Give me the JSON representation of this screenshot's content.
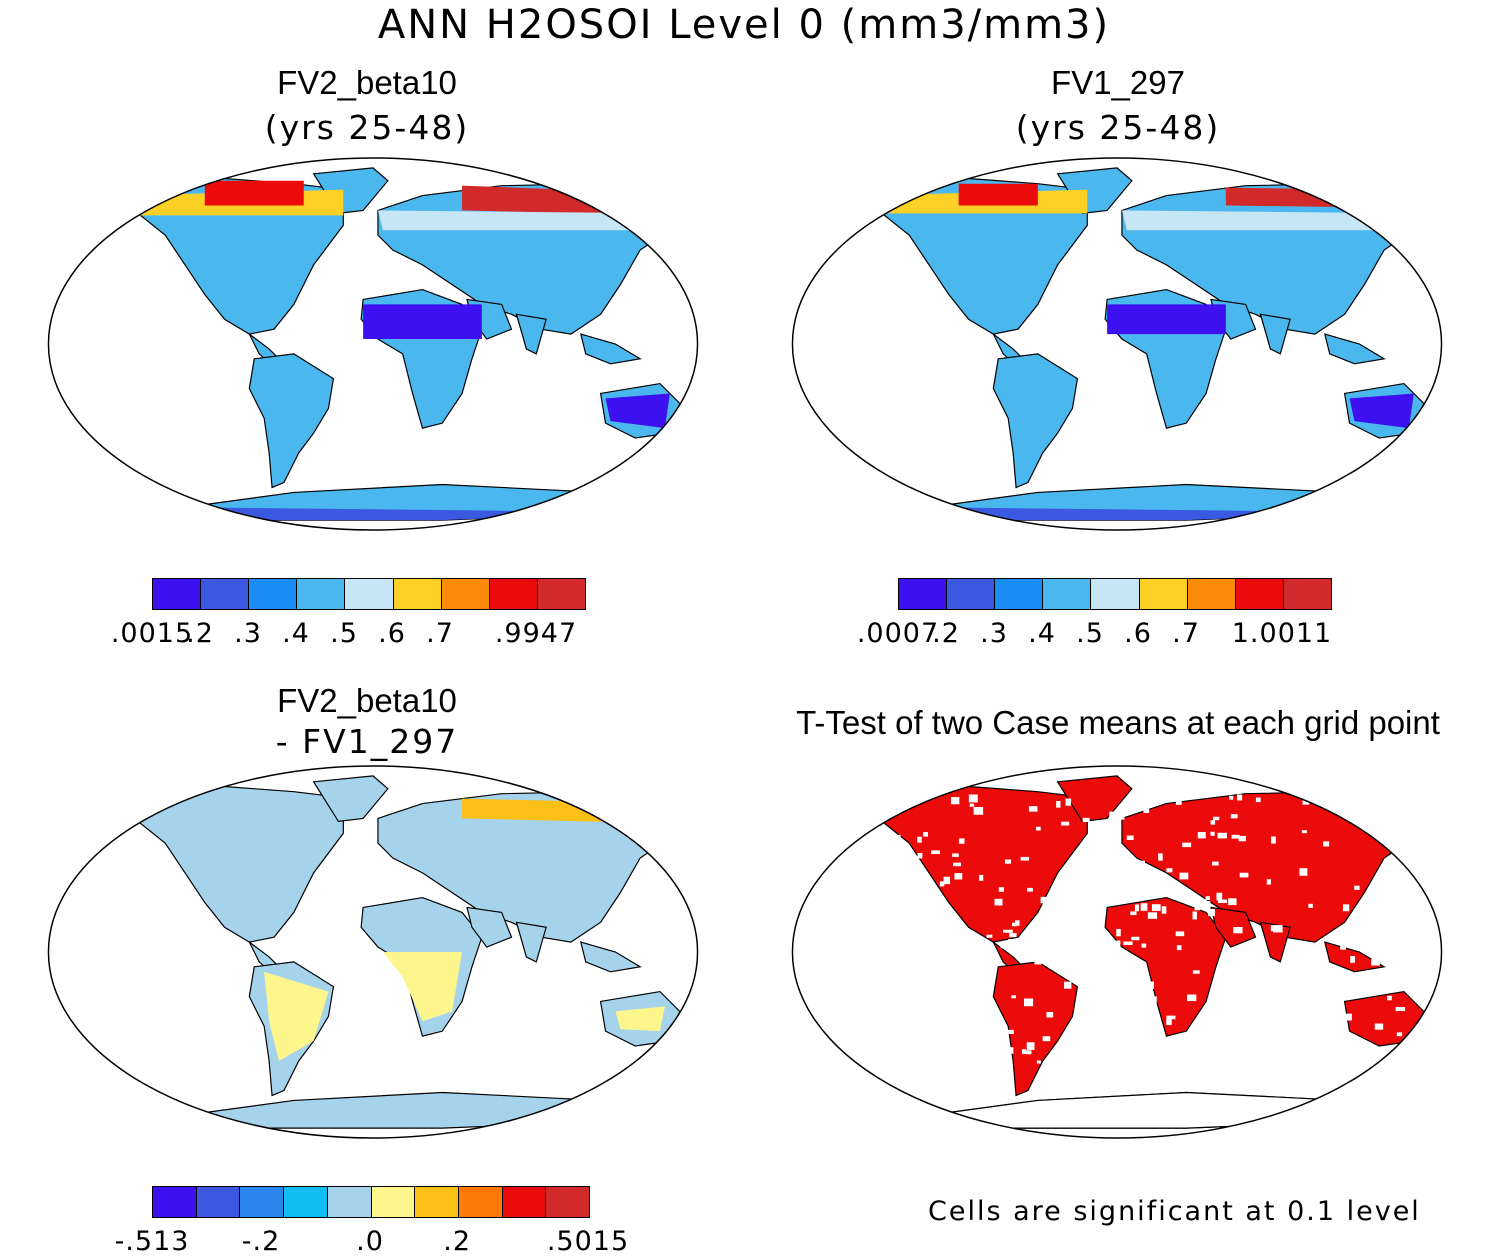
{
  "title": "ANN H2OSOI Level 0 (mm3/mm3)",
  "panels": [
    {
      "title": "FV2_beta10",
      "subtitle": "(yrs 25-48)",
      "colorbar": {
        "colors": [
          "#3d10f0",
          "#3a58e0",
          "#1c8df5",
          "#4ab8ee",
          "#c6e6f6",
          "#fdd025",
          "#fd8a0a",
          "#ec0b0b",
          "#d22a2a"
        ],
        "tick_labels": [
          ".0015",
          ".2",
          ".3",
          ".4",
          ".5",
          ".6",
          ".7",
          ".9947"
        ]
      }
    },
    {
      "title": "FV1_297",
      "subtitle": "(yrs 25-48)",
      "colorbar": {
        "colors": [
          "#3d10f0",
          "#3a58e0",
          "#1c8df5",
          "#4ab8ee",
          "#c6e6f6",
          "#fdd025",
          "#fd8a0a",
          "#ec0b0b",
          "#d22a2a"
        ],
        "tick_labels": [
          ".0007",
          ".2",
          ".3",
          ".4",
          ".5",
          ".6",
          ".7",
          "1.0011"
        ]
      }
    },
    {
      "title": "FV2_beta10",
      "subtitle": "- FV1_297",
      "colorbar": {
        "colors": [
          "#3d10f0",
          "#3a58e0",
          "#2a87ec",
          "#12bdf4",
          "#a6d3ec",
          "#fdf68c",
          "#fdc016",
          "#fd7a0a",
          "#ec0b0b",
          "#d22a2a"
        ],
        "tick_labels": [
          "-.513",
          "-.2",
          ".0",
          ".2",
          ".5015"
        ]
      }
    },
    {
      "title": "T-Test of two Case means at each grid point",
      "note": "Cells are significant at 0.1 level"
    }
  ],
  "map_colors": {
    "land_base_1": "#4ab8ee",
    "land_base_2": "#4ab8ee",
    "diff_base": "#a6d3ec",
    "significant": "#ec0b0b"
  }
}
